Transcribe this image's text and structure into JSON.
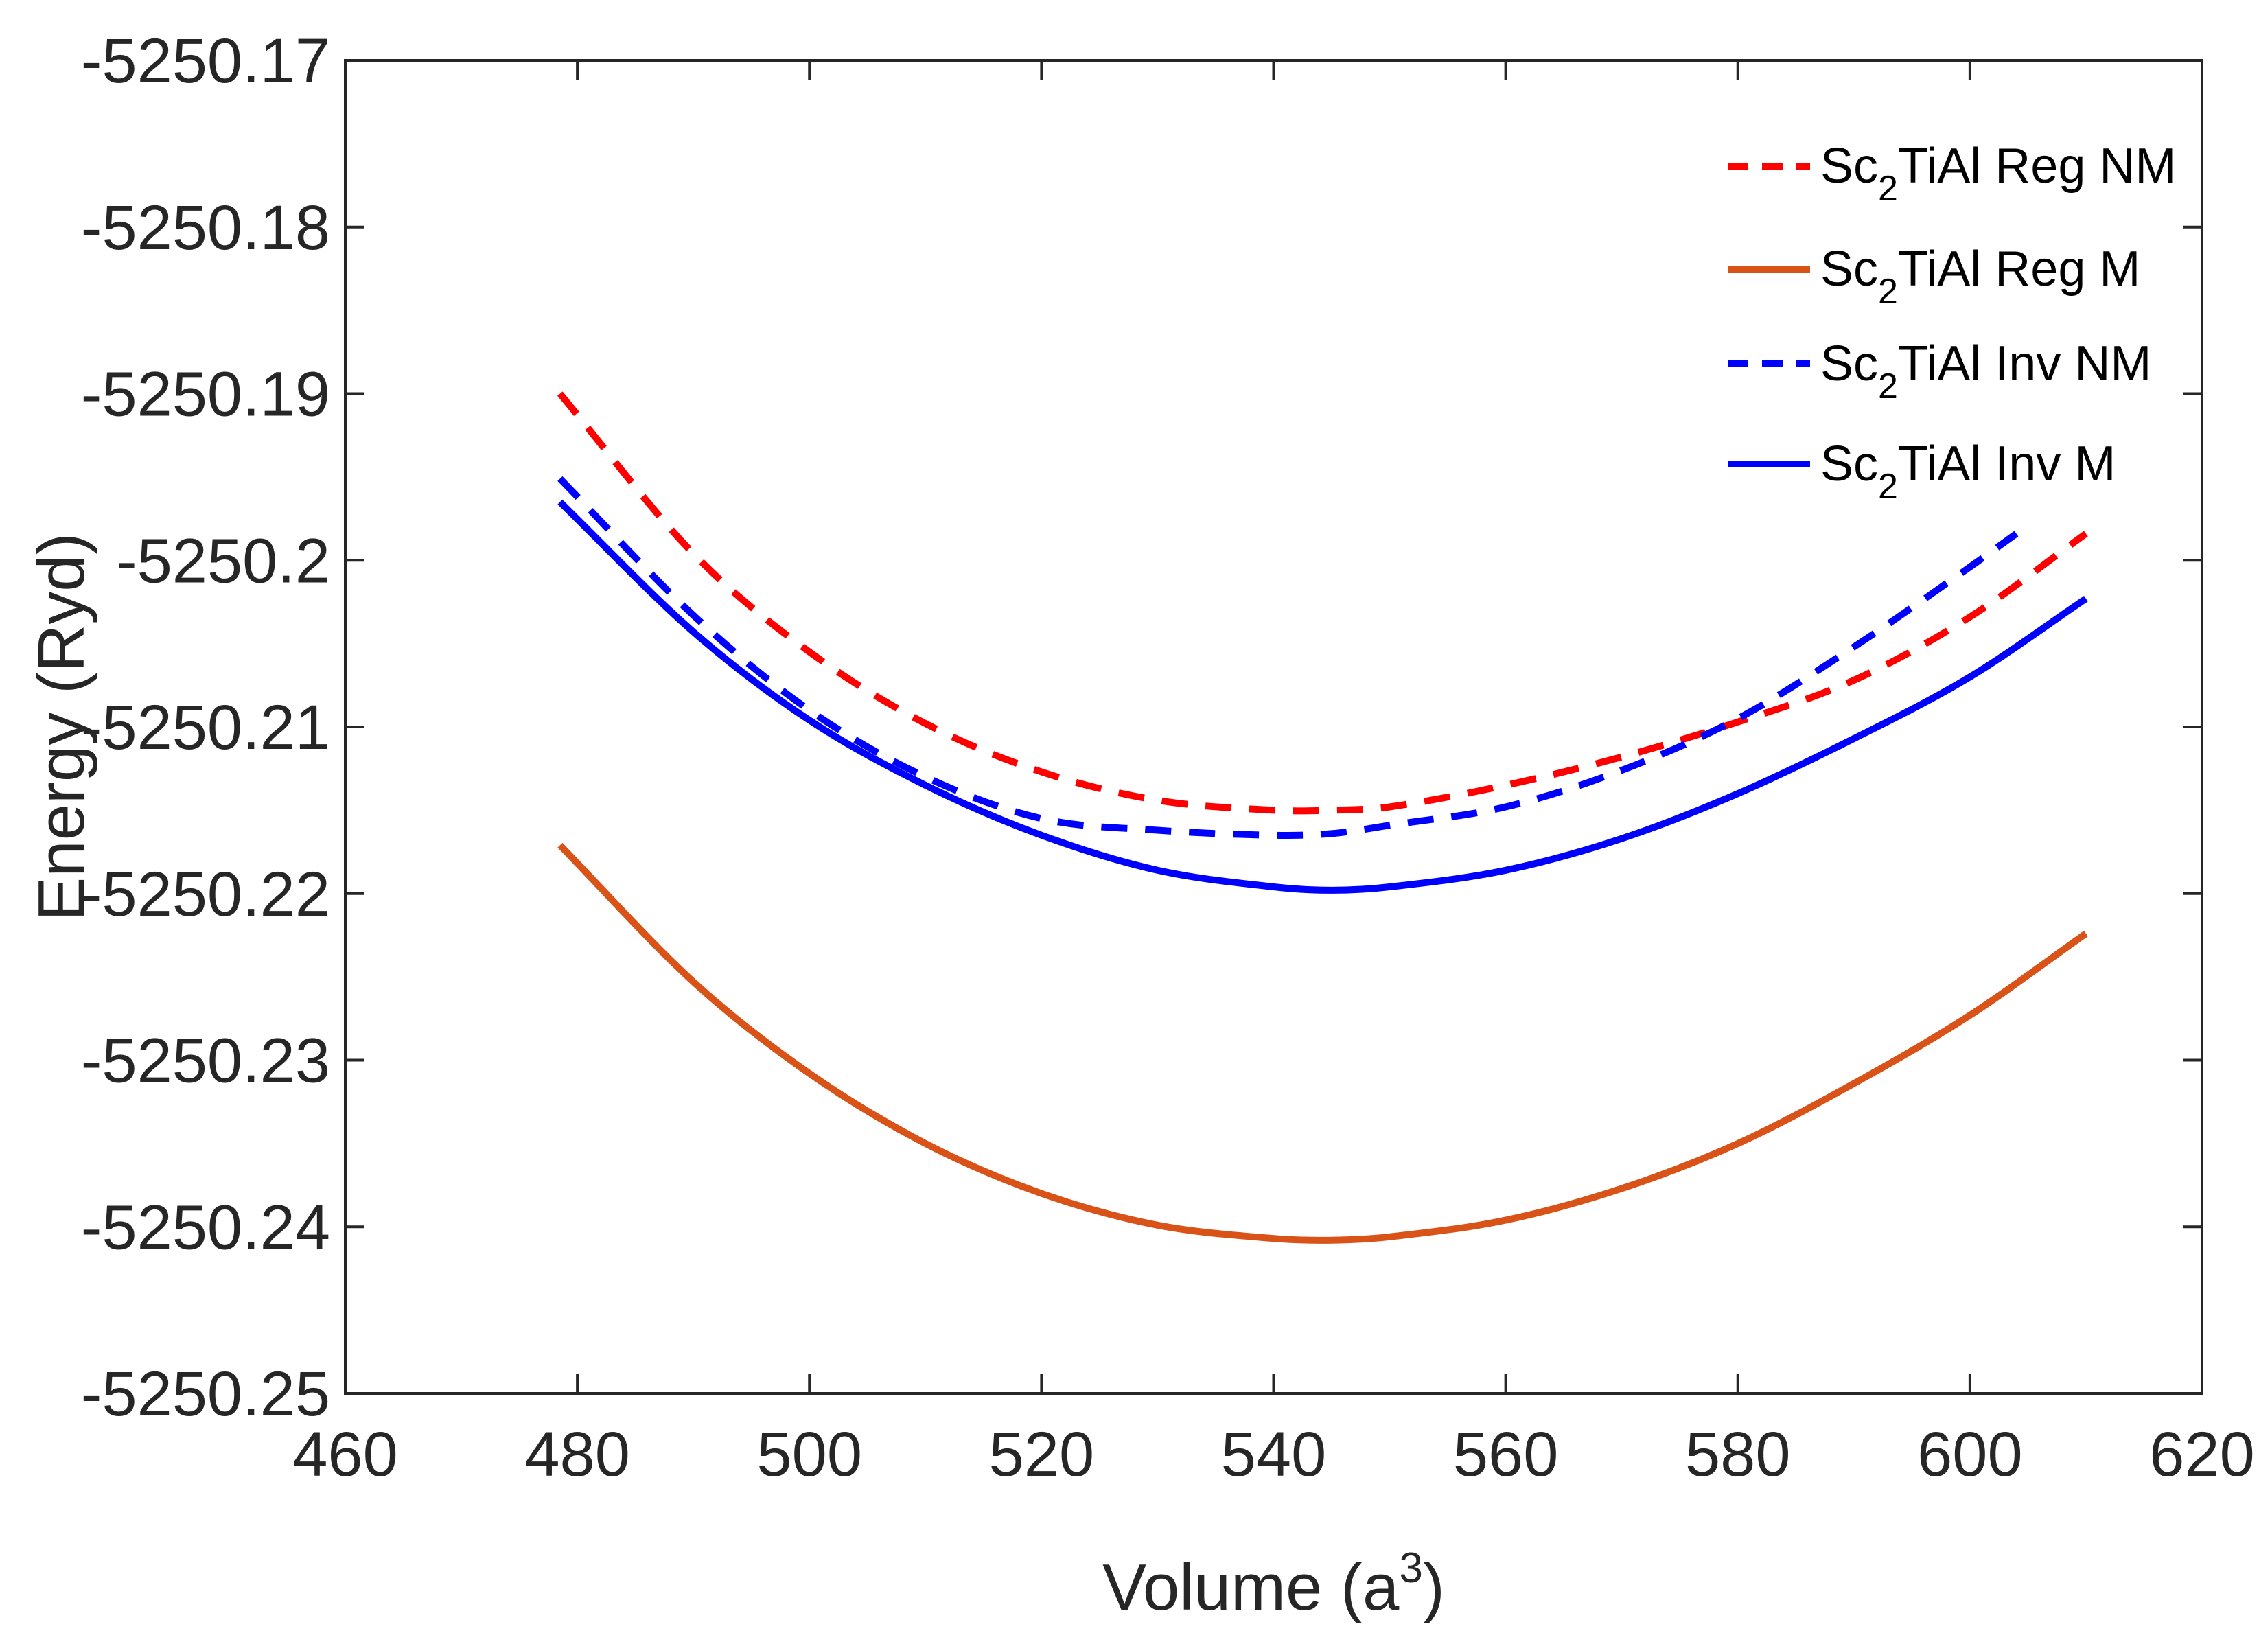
{
  "chart_data": {
    "type": "line",
    "xlabel": "Volume (a",
    "xlabel_sup": "3",
    "xlabel_close": ")",
    "ylabel": "Energy (Ryd)",
    "xlim": [
      460,
      620
    ],
    "ylim": [
      -5250.25,
      -5250.17
    ],
    "x_ticks": [
      460,
      480,
      500,
      520,
      540,
      560,
      580,
      600,
      620
    ],
    "x_tick_labels": [
      "460",
      "480",
      "500",
      "520",
      "540",
      "560",
      "580",
      "600",
      "620"
    ],
    "y_ticks": [
      -5250.17,
      -5250.18,
      -5250.19,
      -5250.2,
      -5250.21,
      -5250.22,
      -5250.23,
      -5250.24,
      -5250.25
    ],
    "y_tick_labels": [
      "-5250.17",
      "-5250.18",
      "-5250.19",
      "-5250.2",
      "-5250.21",
      "-5250.22",
      "-5250.23",
      "-5250.24",
      "-5250.25"
    ],
    "legend_position": "top-right",
    "series": [
      {
        "name": "Sc2TiAl Reg NM",
        "label_main": "Sc",
        "label_sub": "2",
        "label_rest": "TiAl Reg NM",
        "color": "#ff0000",
        "dash": "dashed",
        "x": [
          478.5,
          490,
          500,
          510,
          520,
          530,
          540,
          545,
          550,
          560,
          570,
          580,
          590,
          600,
          610
        ],
        "y": [
          -5250.19,
          -5250.1996,
          -5250.2055,
          -5250.2098,
          -5250.2127,
          -5250.2144,
          -5250.215,
          -5250.215,
          -5250.2148,
          -5250.2135,
          -5250.2118,
          -5250.2097,
          -5250.2072,
          -5250.2034,
          -5250.1984
        ]
      },
      {
        "name": "Sc2TiAl Reg M",
        "label_main": "Sc",
        "label_sub": "2",
        "label_rest": "TiAl Reg M",
        "color": "#d95319",
        "dash": "solid",
        "x": [
          478.5,
          490,
          500,
          510,
          520,
          530,
          540,
          545,
          550,
          560,
          570,
          580,
          590,
          600,
          610
        ],
        "y": [
          -5250.2171,
          -5250.2253,
          -5250.2308,
          -5250.235,
          -5250.238,
          -5250.2399,
          -5250.2407,
          -5250.2408,
          -5250.2406,
          -5250.2396,
          -5250.2377,
          -5250.235,
          -5250.2314,
          -5250.2273,
          -5250.2224
        ]
      },
      {
        "name": "Sc2TiAl Inv NM",
        "label_main": "Sc",
        "label_sub": "2",
        "label_rest": "TiAl Inv NM",
        "color": "#0000ff",
        "dash": "dashed",
        "x": [
          478.5,
          490,
          500,
          510,
          520,
          530,
          540,
          545,
          550,
          560,
          570,
          580,
          590,
          600,
          604
        ],
        "y": [
          -5250.1951,
          -5250.2033,
          -5250.209,
          -5250.213,
          -5250.2155,
          -5250.2162,
          -5250.2165,
          -5250.2164,
          -5250.2159,
          -5250.2148,
          -5250.2126,
          -5250.2095,
          -5250.2052,
          -5250.2004,
          -5250.1984
        ]
      },
      {
        "name": "Sc2TiAl Inv M",
        "label_main": "Sc",
        "label_sub": "2",
        "label_rest": "TiAl Inv M",
        "color": "#0000ff",
        "dash": "solid",
        "x": [
          478.5,
          490,
          500,
          510,
          520,
          530,
          540,
          545,
          550,
          560,
          570,
          580,
          590,
          600,
          610
        ],
        "y": [
          -5250.1965,
          -5250.2043,
          -5250.2096,
          -5250.2135,
          -5250.2165,
          -5250.2186,
          -5250.2196,
          -5250.2198,
          -5250.2196,
          -5250.2186,
          -5250.2167,
          -5250.214,
          -5250.2107,
          -5250.207,
          -5250.2023
        ]
      }
    ]
  }
}
